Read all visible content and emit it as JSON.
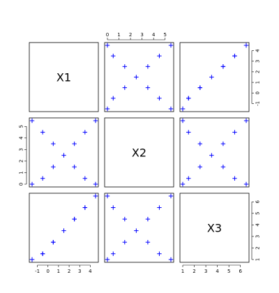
{
  "chart_data": {
    "type": "scatter",
    "variables": [
      "X1",
      "X2",
      "X3"
    ],
    "points": [
      [
        -1.5,
        0,
        1
      ],
      [
        -0.5,
        0.5,
        1.5
      ],
      [
        0.5,
        1.5,
        2.5
      ],
      [
        1.5,
        2.5,
        3.5
      ],
      [
        2.5,
        3.5,
        4.5
      ],
      [
        3.5,
        4.5,
        5.5
      ],
      [
        4.5,
        5.5,
        6.5
      ],
      [
        4.5,
        0,
        6.5
      ],
      [
        3.5,
        0.5,
        5.5
      ],
      [
        2.5,
        1.5,
        4.5
      ],
      [
        0.5,
        3.5,
        2.5
      ],
      [
        -0.5,
        4.5,
        1.5
      ],
      [
        -1.5,
        5.5,
        1
      ]
    ],
    "axes": {
      "X1": {
        "ticks": [
          -1,
          0,
          1,
          2,
          3,
          4
        ],
        "range": [
          -1.5,
          4.5
        ]
      },
      "X2": {
        "ticks": [
          0,
          1,
          2,
          3,
          4,
          5
        ],
        "range": [
          0,
          5.5
        ]
      },
      "X3": {
        "ticks": [
          1,
          2,
          3,
          4,
          5,
          6
        ],
        "range": [
          1,
          6.5
        ]
      }
    },
    "marker": "+",
    "marker_color": "#0000ff",
    "grid": false,
    "legend": "none"
  }
}
